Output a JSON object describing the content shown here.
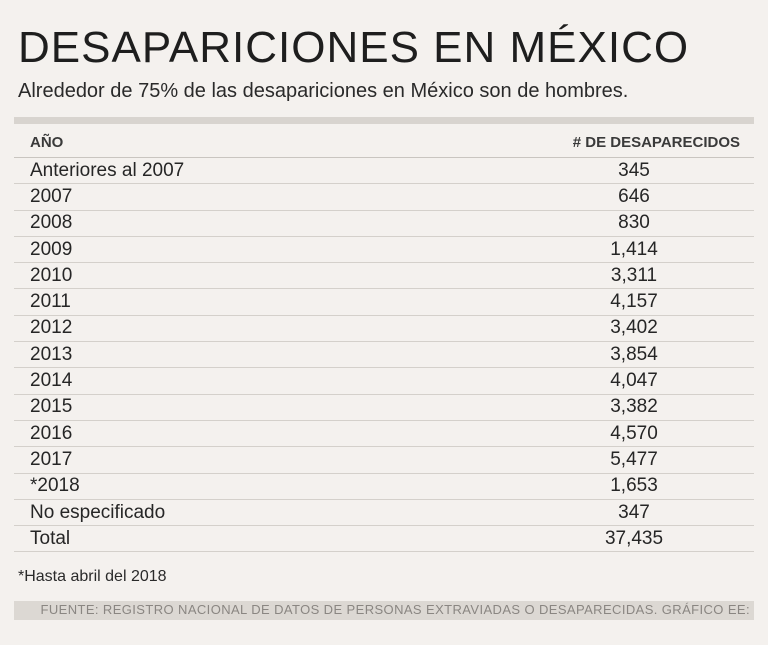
{
  "title": "DESAPARICIONES EN MÉXICO",
  "subtitle": "Alrededor de 75% de las desapariciones en México son de hombres.",
  "header": {
    "year": "AÑO",
    "count": "# DE DESAPARECIDOS"
  },
  "chart_data": {
    "type": "table",
    "title": "DESAPARICIONES EN MÉXICO",
    "columns": [
      "AÑO",
      "# DE DESAPARECIDOS"
    ],
    "rows": [
      [
        "Anteriores al 2007",
        "345"
      ],
      [
        "2007",
        "646"
      ],
      [
        "2008",
        "830"
      ],
      [
        "2009",
        "1,414"
      ],
      [
        "2010",
        "3,311"
      ],
      [
        "2011",
        "4,157"
      ],
      [
        "2012",
        "3,402"
      ],
      [
        "2013",
        "3,854"
      ],
      [
        "2014",
        "4,047"
      ],
      [
        "2015",
        "3,382"
      ],
      [
        "2016",
        "4,570"
      ],
      [
        "2017",
        "5,477"
      ],
      [
        "*2018",
        "1,653"
      ],
      [
        "No especificado",
        "347"
      ],
      [
        "Total",
        "37,435"
      ]
    ]
  },
  "footnote": "*Hasta abril del 2018",
  "source": "FUENTE: REGISTRO NACIONAL DE DATOS DE PERSONAS EXTRAVIADAS O DESAPARECIDAS. GRÁFICO EE:"
}
